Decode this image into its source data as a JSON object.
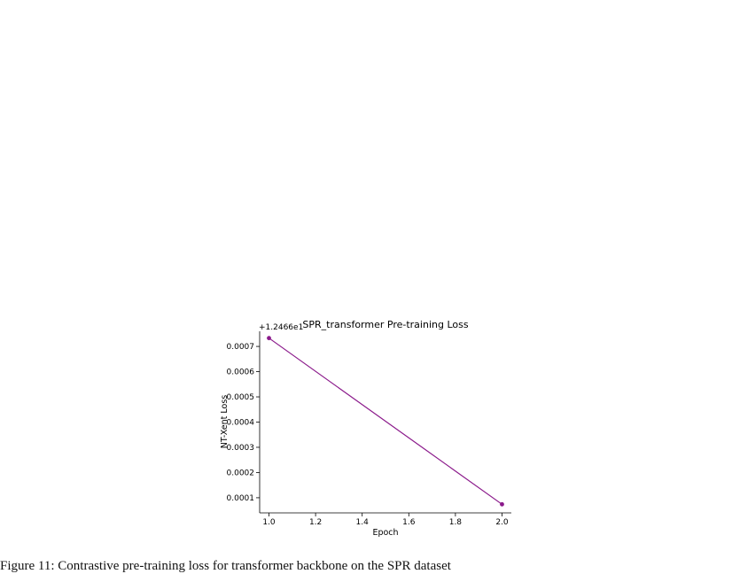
{
  "chart_data": {
    "type": "line",
    "title": "SPR_transformer Pre-training Loss",
    "xlabel": "Epoch",
    "ylabel": "NT-Xent Loss",
    "offset_label": "+1.2466e1",
    "x_ticks": [
      "1.0",
      "1.2",
      "1.4",
      "1.6",
      "1.8",
      "2.0"
    ],
    "y_ticks": [
      "0.0001",
      "0.0002",
      "0.0003",
      "0.0004",
      "0.0005",
      "0.0006",
      "0.0007"
    ],
    "xlim": [
      0.96,
      2.04
    ],
    "ylim": [
      4e-05,
      0.00076
    ],
    "grid": false,
    "series": [
      {
        "x": [
          1.0,
          2.0
        ],
        "y": [
          0.000733,
          7.4e-05
        ],
        "color": "#8b1a8b"
      }
    ]
  },
  "caption": "Figure 11: Contrastive pre-training loss for transformer backbone on the SPR dataset"
}
